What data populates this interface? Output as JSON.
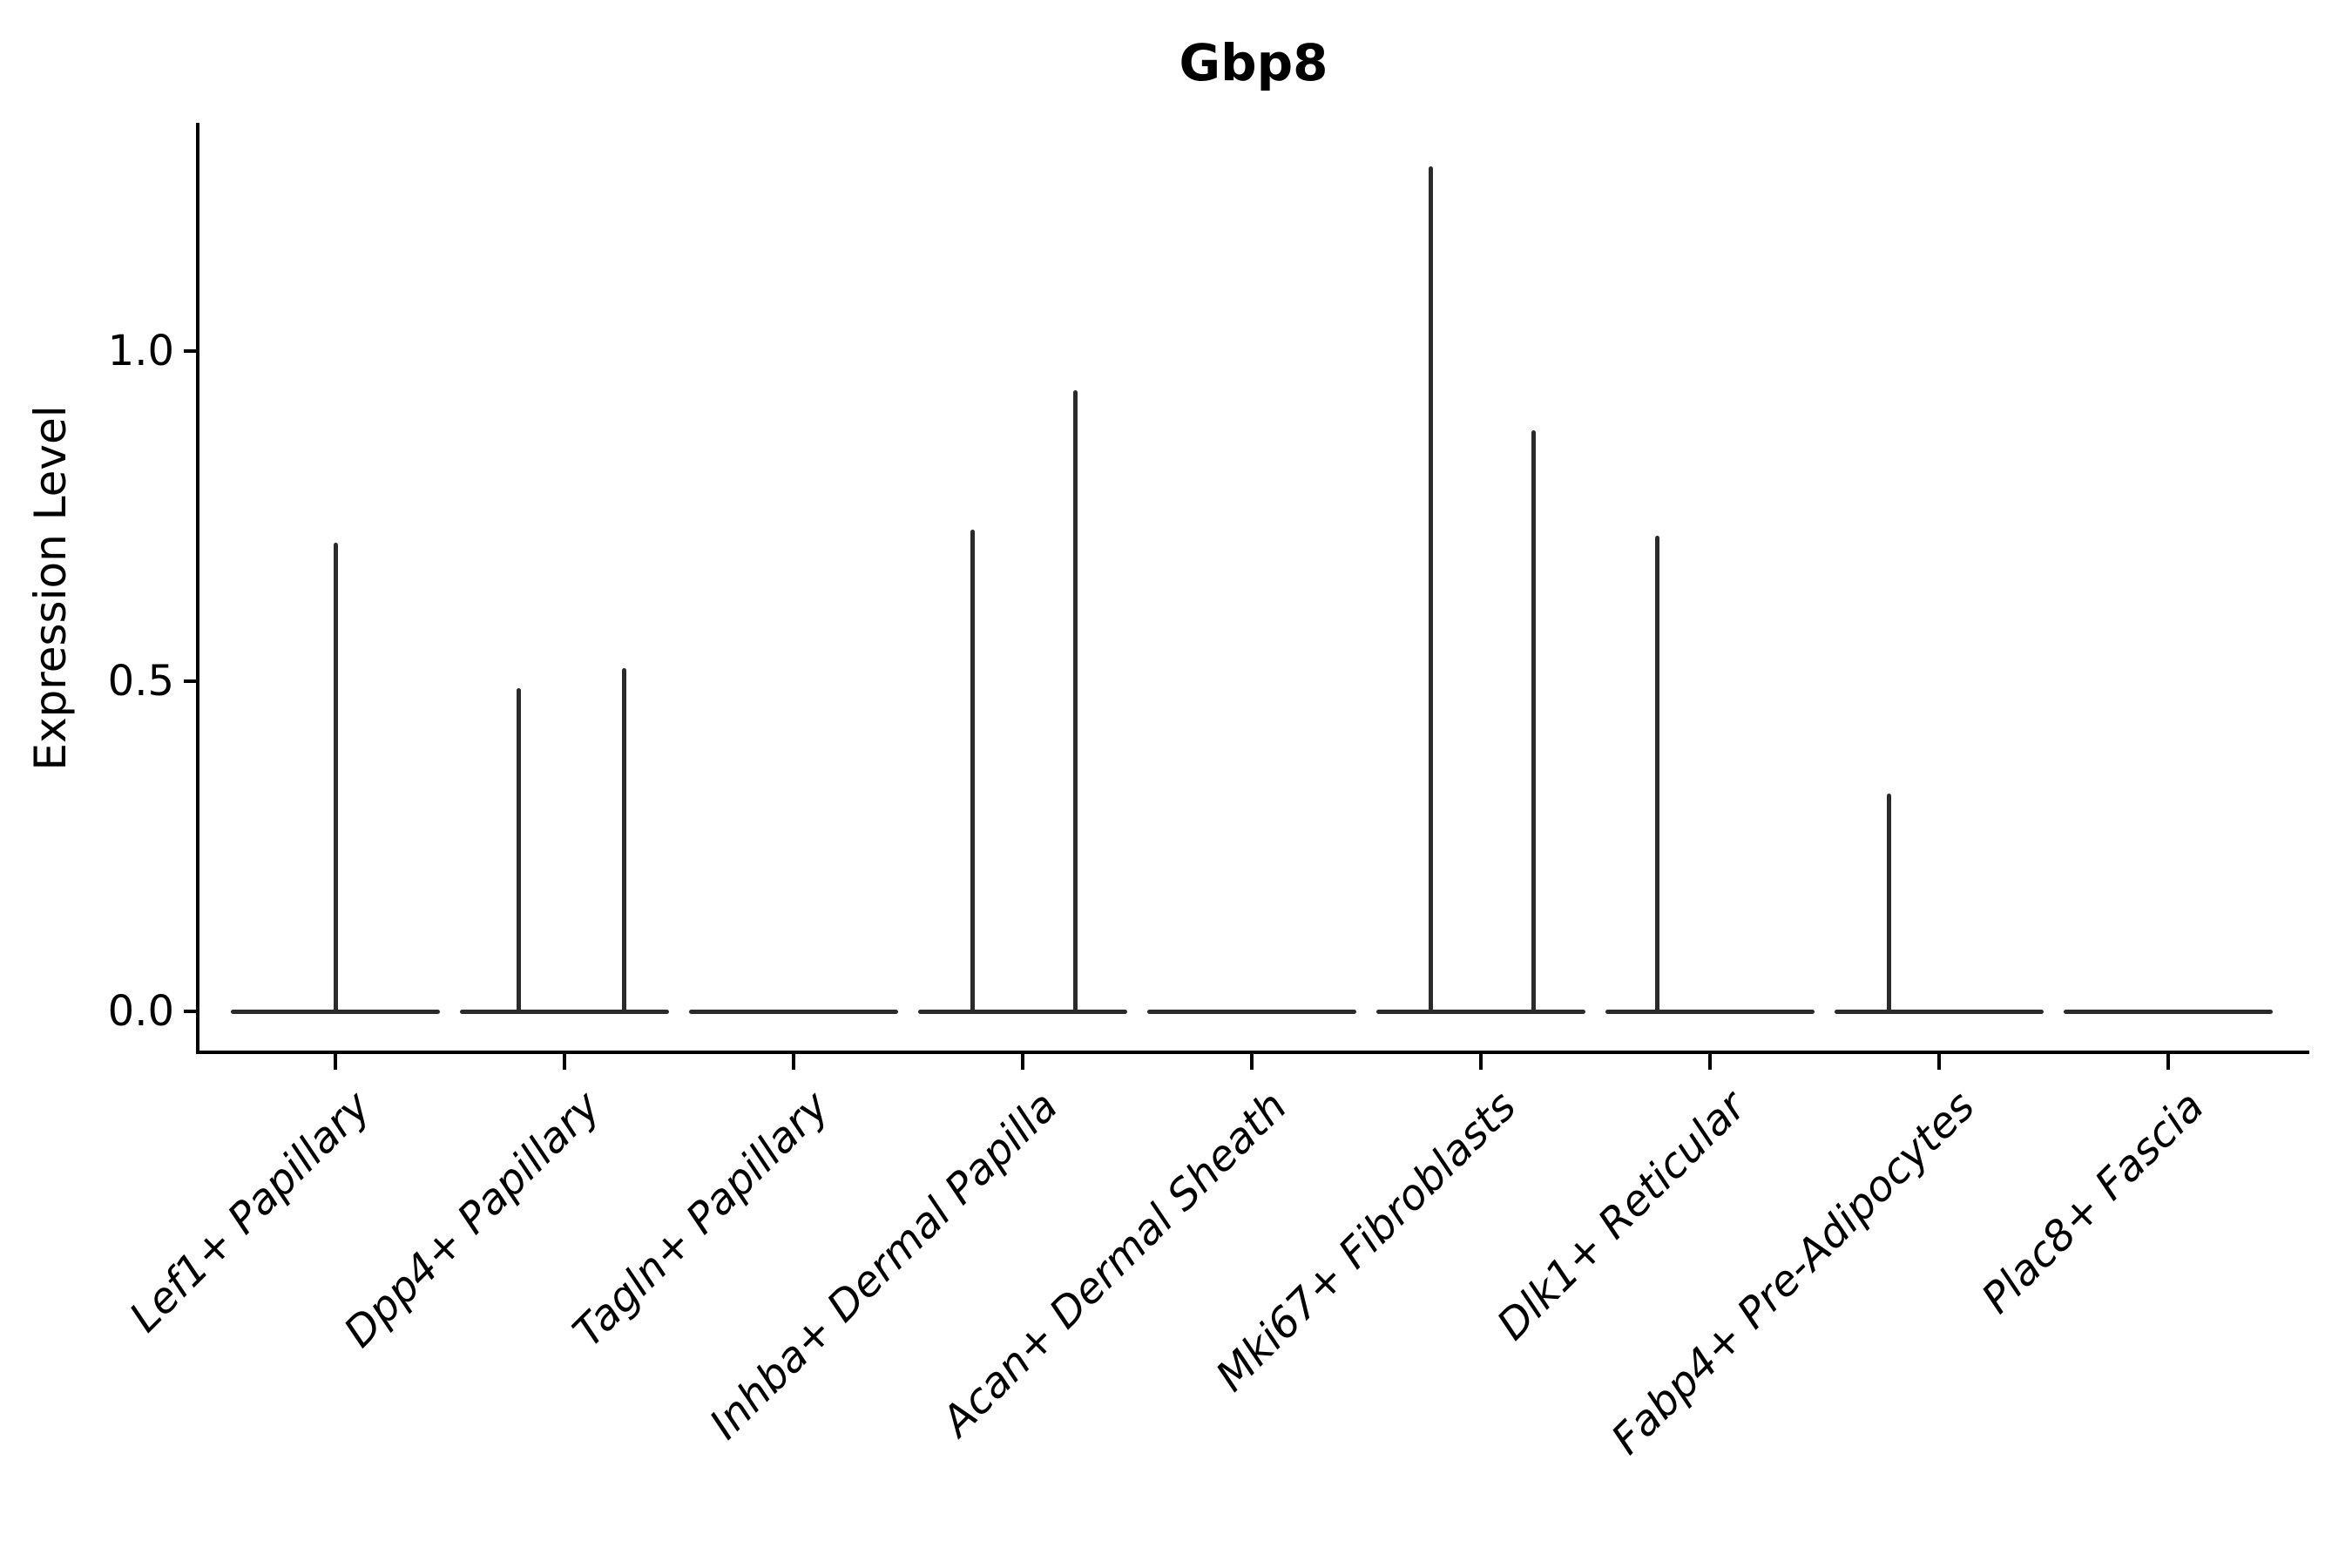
{
  "page": {
    "background": "#ffffff"
  },
  "colors": {
    "ink": "#000000",
    "violin": "#2b2b2b"
  },
  "chart_data": {
    "type": "violin",
    "title": "Gbp8",
    "xlabel": "",
    "ylabel": "Expression Level",
    "yticks": [
      0.0,
      0.5,
      1.0
    ],
    "ylim": [
      -0.062,
      1.35
    ],
    "grid": false,
    "legend": "none",
    "x_tick_label_style": "italic, rotated 45 degrees",
    "violin_width": 0.9,
    "categories": [
      "Lef1+ Papillary",
      "Dpp4+ Papillary",
      "Tagln+ Papillary",
      "Inhba+ Dermal Papilla",
      "Acan+ Dermal Sheath",
      "Mki67+ Fibroblasts",
      "Dlk1+ Reticular",
      "Fabp4+ Pre-Adipocytes",
      "Plac8+ Fascia"
    ],
    "groups": [
      {
        "category": "Lef1+ Papillary",
        "baseline_value": 0.0,
        "spikes": [
          {
            "dx": 0.0,
            "value": 0.71
          }
        ]
      },
      {
        "category": "Dpp4+ Papillary",
        "baseline_value": 0.0,
        "spikes": [
          {
            "dx": -0.2,
            "value": 0.49
          },
          {
            "dx": 0.26,
            "value": 0.52
          }
        ]
      },
      {
        "category": "Tagln+ Papillary",
        "baseline_value": 0.0,
        "spikes": []
      },
      {
        "category": "Inhba+ Dermal Papilla",
        "baseline_value": 0.0,
        "spikes": [
          {
            "dx": -0.22,
            "value": 0.73
          },
          {
            "dx": 0.23,
            "value": 0.94
          }
        ]
      },
      {
        "category": "Acan+ Dermal Sheath",
        "baseline_value": 0.0,
        "spikes": []
      },
      {
        "category": "Mki67+ Fibroblasts",
        "baseline_value": 0.0,
        "spikes": [
          {
            "dx": -0.22,
            "value": 1.28
          },
          {
            "dx": 0.23,
            "value": 0.88
          }
        ]
      },
      {
        "category": "Dlk1+ Reticular",
        "baseline_value": 0.0,
        "spikes": [
          {
            "dx": -0.23,
            "value": 0.72
          }
        ]
      },
      {
        "category": "Fabp4+ Pre-Adipocytes",
        "baseline_value": 0.0,
        "spikes": [
          {
            "dx": -0.22,
            "value": 0.33
          }
        ]
      },
      {
        "category": "Plac8+ Fascia",
        "baseline_value": 0.0,
        "spikes": []
      }
    ]
  }
}
